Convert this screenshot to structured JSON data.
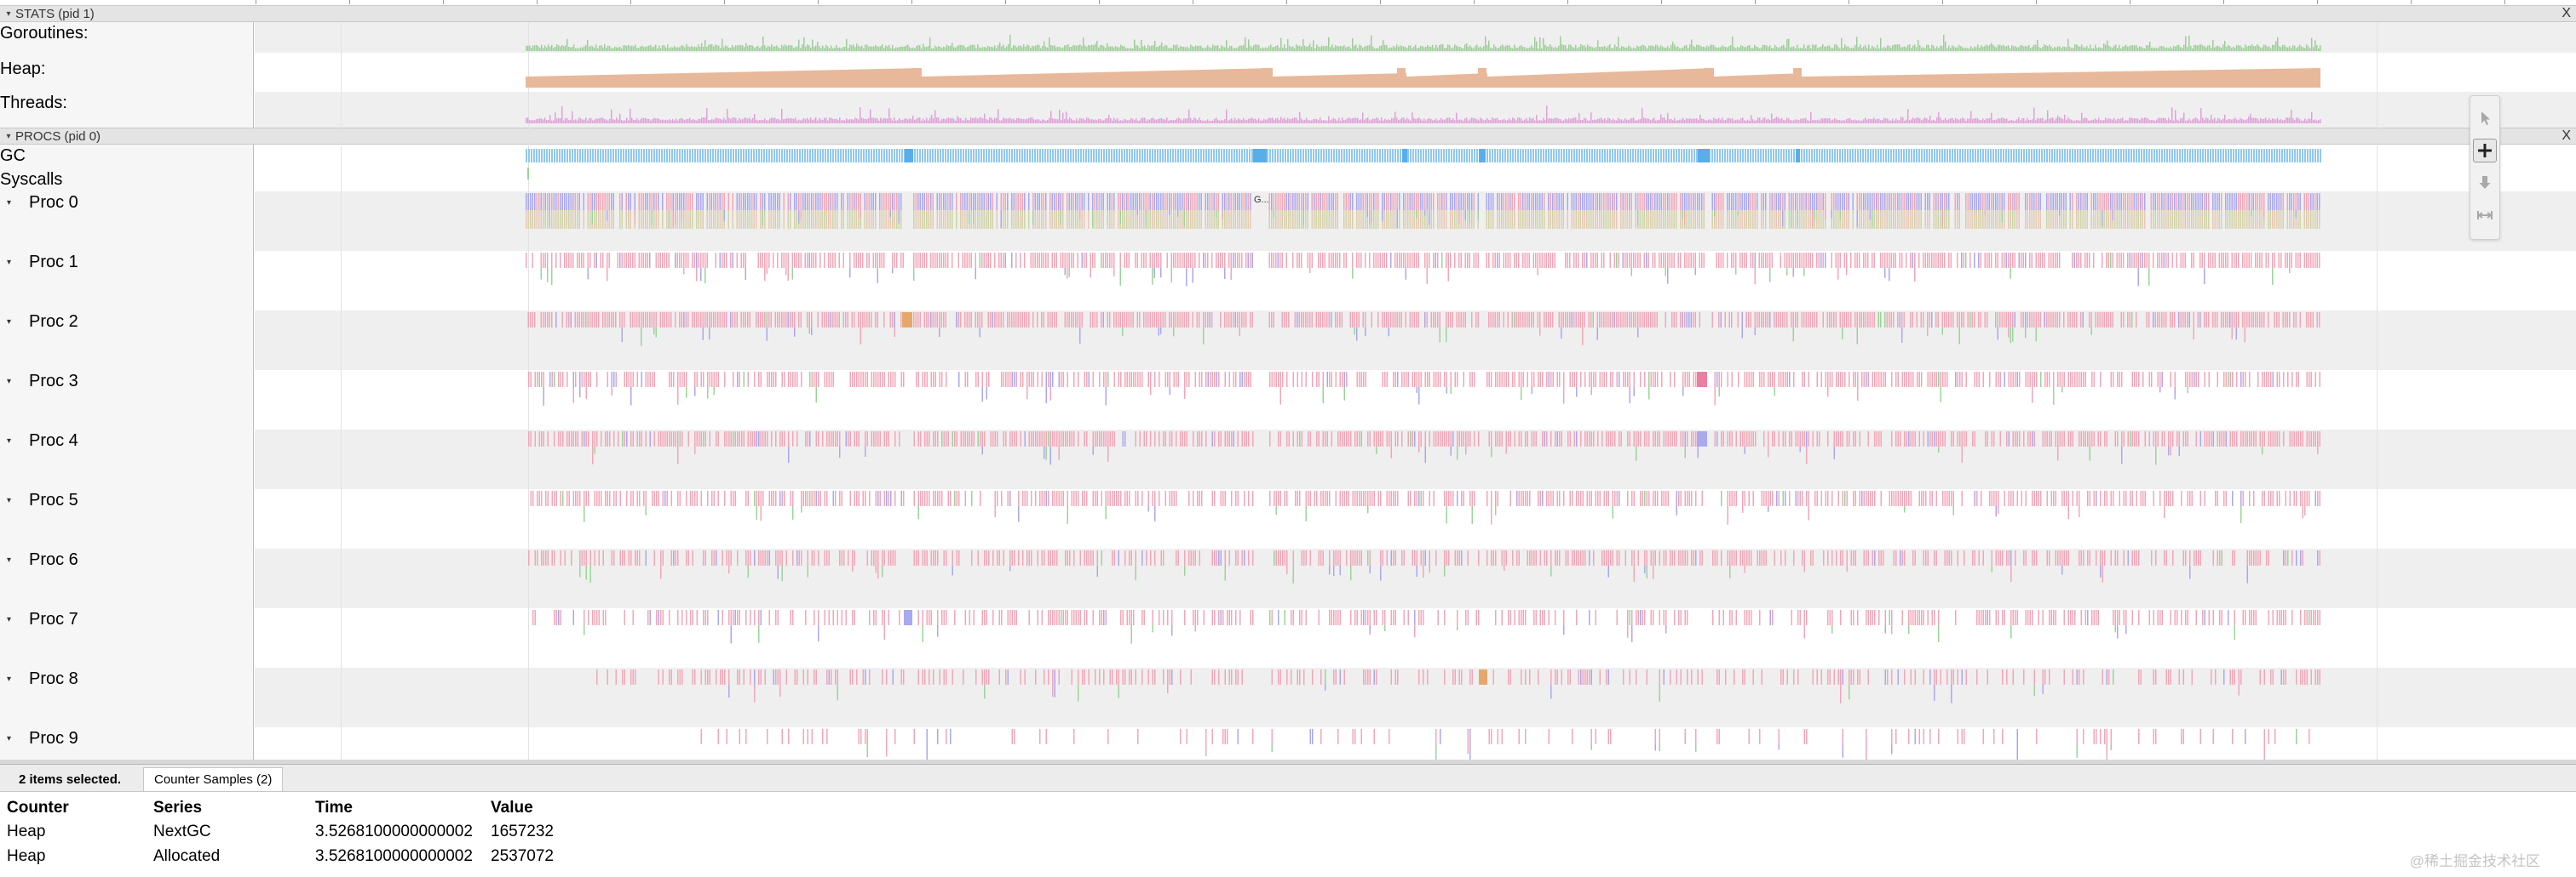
{
  "stats_section": {
    "title": "STATS (pid 1)",
    "close": "X"
  },
  "stats_tracks": [
    {
      "label": "Goroutines:"
    },
    {
      "label": "Heap:"
    },
    {
      "label": "Threads:"
    }
  ],
  "procs_section": {
    "title": "PROCS (pid 0)",
    "close": "X"
  },
  "gc_track": {
    "label": "GC",
    "slice_label": "G..."
  },
  "syscalls_track": {
    "label": "Syscalls"
  },
  "procs": [
    {
      "label": "Proc 0"
    },
    {
      "label": "Proc 1"
    },
    {
      "label": "Proc 2"
    },
    {
      "label": "Proc 3"
    },
    {
      "label": "Proc 4"
    },
    {
      "label": "Proc 5"
    },
    {
      "label": "Proc 6"
    },
    {
      "label": "Proc 7"
    },
    {
      "label": "Proc 8"
    },
    {
      "label": "Proc 9"
    }
  ],
  "tools": [
    {
      "name": "selection-tool",
      "icon": "cursor-arrow-icon"
    },
    {
      "name": "pan-tool",
      "icon": "plus-move-icon",
      "active": true
    },
    {
      "name": "zoom-tool",
      "icon": "vertical-zoom-icon"
    },
    {
      "name": "timing-tool",
      "icon": "horizontal-measure-icon"
    }
  ],
  "colors": {
    "goroutines": "#9fcc9a",
    "heap": "#e8b89a",
    "threads": "#dfa0d8",
    "gc": "#92c8ee",
    "gc_strong": "#5aaee8",
    "running": "#f1a7b8",
    "mark": "#aaa8ee",
    "syscall_green": "#9ad49a",
    "orange": "#e6a86a"
  },
  "bottom_panel": {
    "selected_count": "2 items selected.",
    "tab_label": "Counter Samples (2)",
    "columns": [
      "Counter",
      "Series",
      "Time",
      "Value"
    ],
    "rows": [
      [
        "Heap",
        "NextGC",
        "3.5268100000000002",
        "1657232"
      ],
      [
        "Heap",
        "Allocated",
        "3.5268100000000002",
        "2537072"
      ]
    ]
  },
  "watermark": "@稀土掘金技术社区"
}
